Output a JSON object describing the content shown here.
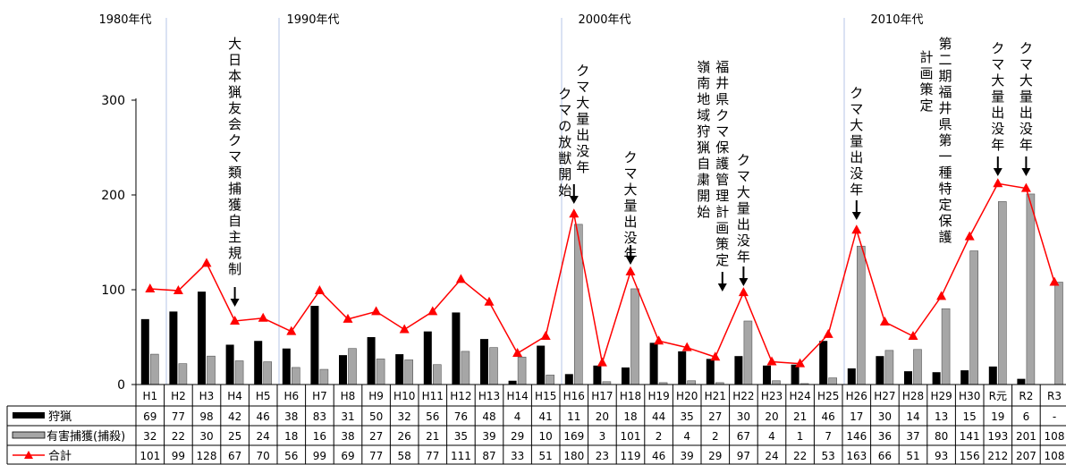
{
  "chart_data": {
    "type": "bar",
    "categories": [
      "H1",
      "H2",
      "H3",
      "H4",
      "H5",
      "H6",
      "H7",
      "H8",
      "H9",
      "H10",
      "H11",
      "H12",
      "H13",
      "H14",
      "H15",
      "H16",
      "H17",
      "H18",
      "H19",
      "H20",
      "H21",
      "H22",
      "H23",
      "H24",
      "H25",
      "H26",
      "H27",
      "H28",
      "H29",
      "H30",
      "R元",
      "R2",
      "R3"
    ],
    "series": [
      {
        "name": "狩猟",
        "kind": "bar",
        "color": "#000000",
        "values": [
          69,
          77,
          98,
          42,
          46,
          38,
          83,
          31,
          50,
          32,
          56,
          76,
          48,
          4,
          41,
          11,
          20,
          18,
          44,
          35,
          27,
          30,
          20,
          21,
          46,
          17,
          30,
          14,
          13,
          15,
          19,
          6,
          null
        ],
        "labels": [
          "69",
          "77",
          "98",
          "42",
          "46",
          "38",
          "83",
          "31",
          "50",
          "32",
          "56",
          "76",
          "48",
          "4",
          "41",
          "11",
          "20",
          "18",
          "44",
          "35",
          "27",
          "30",
          "20",
          "21",
          "46",
          "17",
          "30",
          "14",
          "13",
          "15",
          "19",
          "6",
          "-"
        ]
      },
      {
        "name": "有害捕獲(捕殺)",
        "kind": "bar",
        "color": "#a6a6a6",
        "values": [
          32,
          22,
          30,
          25,
          24,
          18,
          16,
          38,
          27,
          26,
          21,
          35,
          39,
          29,
          10,
          169,
          3,
          101,
          2,
          4,
          2,
          67,
          4,
          1,
          7,
          146,
          36,
          37,
          80,
          141,
          193,
          201,
          108
        ],
        "labels": [
          "32",
          "22",
          "30",
          "25",
          "24",
          "18",
          "16",
          "38",
          "27",
          "26",
          "21",
          "35",
          "39",
          "29",
          "10",
          "169",
          "3",
          "101",
          "2",
          "4",
          "2",
          "67",
          "4",
          "1",
          "7",
          "146",
          "36",
          "37",
          "80",
          "141",
          "193",
          "201",
          "108"
        ]
      },
      {
        "name": "合計",
        "kind": "line",
        "color": "#ff0000",
        "values": [
          101,
          99,
          128,
          67,
          70,
          56,
          99,
          69,
          77,
          58,
          77,
          111,
          87,
          33,
          51,
          180,
          23,
          119,
          46,
          39,
          29,
          97,
          24,
          22,
          53,
          163,
          66,
          51,
          93,
          156,
          212,
          207,
          108
        ],
        "labels": [
          "101",
          "99",
          "128",
          "67",
          "70",
          "56",
          "99",
          "69",
          "77",
          "58",
          "77",
          "111",
          "87",
          "33",
          "51",
          "180",
          "23",
          "119",
          "46",
          "39",
          "29",
          "97",
          "24",
          "22",
          "53",
          "163",
          "66",
          "51",
          "93",
          "156",
          "212",
          "207",
          "108"
        ]
      }
    ],
    "ylim": [
      0,
      300
    ],
    "yticks": [
      0,
      100,
      200,
      300
    ],
    "decades": [
      {
        "label": "1980年代",
        "at": "H1"
      },
      {
        "label": "1990年代",
        "at": "H6"
      },
      {
        "label": "2000年代",
        "at": "H16"
      },
      {
        "label": "2010年代",
        "at": "H26"
      }
    ],
    "annotations": [
      {
        "cat": "H4",
        "lines": [
          "大日本猟友会クマ類捕獲自主規制"
        ],
        "arrow": true
      },
      {
        "cat": "H16",
        "lines": [
          "クマ大量出没年",
          "クマの放獣開始"
        ],
        "arrow": true
      },
      {
        "cat": "H18",
        "lines": [
          "クマ大量出没年"
        ],
        "arrow": true
      },
      {
        "cat": "H21",
        "lines": [
          "福井県クマ保護管理計画策定",
          "嶺南地域狩猟自粛開始"
        ],
        "arrow": true
      },
      {
        "cat": "H22",
        "lines": [
          "クマ大量出没年"
        ],
        "arrow": true
      },
      {
        "cat": "H26",
        "lines": [
          "クマ大量出没年"
        ],
        "arrow": true
      },
      {
        "cat": "H29",
        "lines": [
          "第二期福井県第一種特定保護",
          "計画策定"
        ],
        "arrow": false
      },
      {
        "cat": "R元",
        "lines": [
          "クマ大量出没年"
        ],
        "arrow": true
      },
      {
        "cat": "R2",
        "lines": [
          "クマ大量出没年"
        ],
        "arrow": true
      }
    ],
    "grid": false,
    "legend": "table-bottom"
  }
}
